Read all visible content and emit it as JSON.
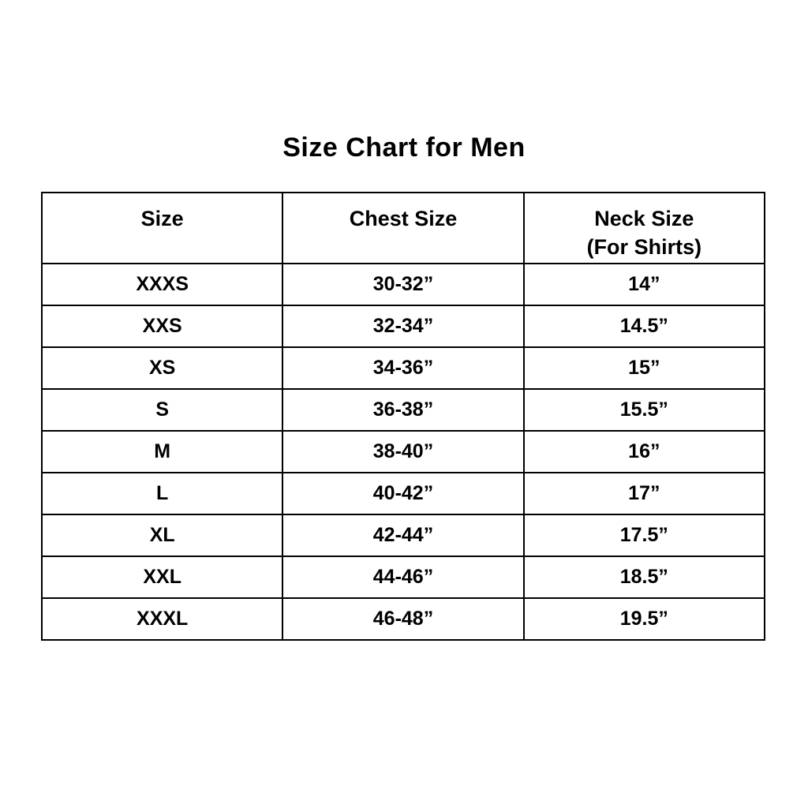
{
  "colors": {
    "background": "#ffffff",
    "text": "#000000",
    "border": "#000000"
  },
  "chart_data": {
    "type": "table",
    "title": "Size Chart for Men",
    "columns": {
      "size": "Size",
      "chest": "Chest Size",
      "neck_line1": "Neck Size",
      "neck_line2": "(For Shirts)"
    },
    "rows": [
      {
        "size": "XXXS",
        "chest": "30-32”",
        "neck": "14”"
      },
      {
        "size": "XXS",
        "chest": "32-34”",
        "neck": "14.5”"
      },
      {
        "size": "XS",
        "chest": "34-36”",
        "neck": "15”"
      },
      {
        "size": "S",
        "chest": "36-38”",
        "neck": "15.5”"
      },
      {
        "size": "M",
        "chest": "38-40”",
        "neck": "16”"
      },
      {
        "size": "L",
        "chest": "40-42”",
        "neck": "17”"
      },
      {
        "size": "XL",
        "chest": "42-44”",
        "neck": "17.5”"
      },
      {
        "size": "XXL",
        "chest": "44-46”",
        "neck": "18.5”"
      },
      {
        "size": "XXXL",
        "chest": "46-48”",
        "neck": "19.5”"
      }
    ]
  }
}
